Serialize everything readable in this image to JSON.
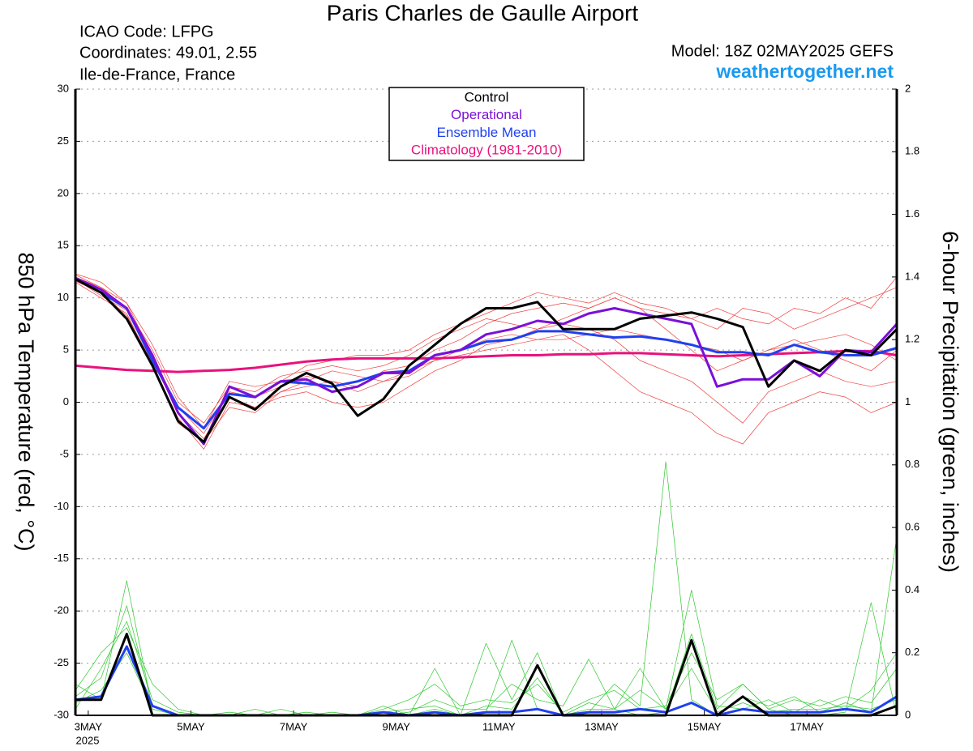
{
  "chart_data": {
    "type": "line",
    "title": "Paris Charles de Gaulle Airport",
    "header": {
      "icao": "ICAO Code: LFPG",
      "coordinates": "Coordinates: 49.01, 2.55",
      "region": "Ile-de-France, France",
      "model": "Model: 18Z 02MAY2025 GEFS",
      "site": "weathertogether.net"
    },
    "ylabel": "850 hPa Temperature (red, °C)",
    "y2label": "6-hour Precipitation (green, inches)",
    "x_sublabel": "2025",
    "grid": true,
    "xlim": [
      2.75,
      18.75
    ],
    "xticks": [
      {
        "value": 3,
        "label": "3MAY"
      },
      {
        "value": 5,
        "label": "5MAY"
      },
      {
        "value": 7,
        "label": "7MAY"
      },
      {
        "value": 9,
        "label": "9MAY"
      },
      {
        "value": 11,
        "label": "11MAY"
      },
      {
        "value": 13,
        "label": "13MAY"
      },
      {
        "value": 15,
        "label": "15MAY"
      },
      {
        "value": 17,
        "label": "17MAY"
      }
    ],
    "ylim": [
      -30,
      30
    ],
    "yticks": [
      -30,
      -25,
      -20,
      -15,
      -10,
      -5,
      0,
      5,
      10,
      15,
      20,
      25,
      30
    ],
    "y2lim": [
      0,
      2
    ],
    "y2ticks": [
      0,
      0.2,
      0.4,
      0.6,
      0.8,
      1,
      1.2,
      1.4,
      1.6,
      1.8,
      2
    ],
    "x": [
      2.75,
      3.25,
      3.75,
      4.25,
      4.75,
      5.25,
      5.75,
      6.25,
      6.75,
      7.25,
      7.75,
      8.25,
      8.75,
      9.25,
      9.75,
      10.25,
      10.75,
      11.25,
      11.75,
      12.25,
      12.75,
      13.25,
      13.75,
      14.25,
      14.75,
      15.25,
      15.75,
      16.25,
      16.75,
      17.25,
      17.75,
      18.25,
      18.75
    ],
    "series": [
      {
        "name": "Control",
        "color": "#000000",
        "values": [
          11.8,
          10.5,
          8,
          3.5,
          -1.8,
          -3.8,
          0.5,
          -0.7,
          1.5,
          2.8,
          1.8,
          -1.3,
          0.3,
          3.5,
          5.5,
          7.5,
          9,
          9,
          9.6,
          7,
          7,
          7,
          8,
          8.3,
          8.6,
          8,
          7.2,
          1.5,
          4,
          3,
          5,
          4.5,
          7
        ]
      },
      {
        "name": "Operational",
        "color": "#7a10d8",
        "values": [
          11.9,
          10.8,
          9,
          4.5,
          -1,
          -4,
          1.5,
          0.5,
          2,
          2.2,
          1,
          1.5,
          2.8,
          2.8,
          4.5,
          5,
          6.5,
          7,
          7.8,
          7.5,
          8.5,
          9,
          8.5,
          8,
          7.5,
          1.5,
          2.2,
          2.2,
          4,
          2.5,
          5,
          4.8,
          7.5
        ]
      },
      {
        "name": "Ensemble Mean",
        "color": "#2040f0",
        "values": [
          11.8,
          10.5,
          9,
          4,
          -0.5,
          -2.5,
          0.8,
          0.5,
          2,
          1.8,
          1.5,
          2,
          2.8,
          3,
          4.5,
          5,
          5.8,
          6,
          6.8,
          6.8,
          6.5,
          6.2,
          6.3,
          6,
          5.5,
          4.8,
          4.8,
          4.5,
          5.5,
          4.8,
          4.5,
          4.5,
          5.2
        ]
      },
      {
        "name": "Climatology (1981-2010)",
        "color": "#e8127c",
        "values": [
          3.5,
          3.3,
          3.1,
          3,
          2.9,
          3,
          3.1,
          3.3,
          3.6,
          3.9,
          4.1,
          4.2,
          4.2,
          4.2,
          4.2,
          4.3,
          4.4,
          4.5,
          4.5,
          4.6,
          4.6,
          4.7,
          4.7,
          4.6,
          4.5,
          4.4,
          4.5,
          4.6,
          4.7,
          4.8,
          4.9,
          4.9,
          4.5
        ]
      },
      {
        "color": "#f04040",
        "values": [
          12.2,
          11,
          9.5,
          4.5,
          -0.5,
          -3,
          1,
          0.5,
          1.5,
          2.5,
          2,
          1.5,
          3,
          3.5,
          5,
          6,
          7.5,
          8.5,
          9,
          9.5,
          9,
          10,
          9,
          8.5,
          8,
          7,
          9,
          8.5,
          7,
          8,
          9,
          10,
          11
        ]
      },
      {
        "color": "#f04040",
        "values": [
          11.5,
          10,
          8.5,
          3.5,
          -1.5,
          -4.5,
          0,
          -0.5,
          1,
          2,
          3,
          2.5,
          2,
          2.5,
          4,
          4.5,
          5,
          5.5,
          6,
          6.5,
          5,
          3,
          1,
          0,
          -1,
          -3,
          -4,
          -1,
          0,
          1,
          0.5,
          -1,
          0
        ]
      },
      {
        "color": "#f04040",
        "values": [
          12,
          11,
          9,
          5,
          0,
          -2,
          1.5,
          1,
          2.5,
          3,
          3.5,
          3,
          3.5,
          4.5,
          6,
          7,
          8,
          7.5,
          7,
          8,
          9,
          10,
          9,
          7,
          5,
          3,
          4,
          5,
          6,
          5,
          4,
          3,
          5
        ]
      },
      {
        "color": "#f04040",
        "values": [
          11.8,
          10.2,
          8.8,
          4,
          -1,
          -3.5,
          0.5,
          -0.5,
          0.5,
          1,
          0,
          -0.5,
          0,
          1.5,
          3,
          4,
          5.5,
          6,
          7,
          7.5,
          7,
          6,
          4,
          3,
          2,
          0,
          -2,
          1,
          2,
          3,
          2,
          1.5,
          2
        ]
      },
      {
        "color": "#f04040",
        "values": [
          12.3,
          11.5,
          9.5,
          5.5,
          0.5,
          -2.5,
          2,
          1.5,
          2,
          3.5,
          4,
          4.5,
          4.5,
          5,
          6.5,
          7.5,
          8.5,
          9.5,
          10.5,
          10,
          9.5,
          10.5,
          9.5,
          9,
          8,
          9,
          8,
          7.5,
          9,
          8.5,
          10,
          9,
          12
        ]
      },
      {
        "color": "#f04040",
        "values": [
          11.6,
          10.5,
          8.3,
          3.8,
          -2,
          -3.8,
          -0.5,
          -1,
          1,
          1.5,
          2,
          1,
          2,
          3,
          4,
          5,
          6,
          6.5,
          6,
          6,
          6.5,
          7,
          6.5,
          6,
          5.5,
          5,
          4,
          5,
          5.5,
          6,
          6.5,
          5.5,
          4
        ]
      },
      {
        "color": "#30c830",
        "axis": "y2",
        "values": [
          0.1,
          0.05,
          0.43,
          0.02,
          0,
          0,
          0,
          0,
          0,
          0,
          0,
          0,
          0,
          0,
          0.02,
          0,
          0.01,
          0.24,
          0.02,
          0,
          0.04,
          0.02,
          0,
          0.01,
          0.26,
          0.02,
          0.1,
          0.02,
          0,
          0,
          0.01,
          0.36,
          0
        ]
      },
      {
        "color": "#30c830",
        "axis": "y2",
        "values": [
          0.02,
          0.15,
          0.3,
          0.05,
          0.01,
          0,
          0,
          0,
          0,
          0.01,
          0,
          0,
          0.03,
          0,
          0.15,
          0,
          0.23,
          0.05,
          0.2,
          0,
          0.01,
          0.1,
          0.03,
          0.81,
          0.05,
          0,
          0.06,
          0.03,
          0.06,
          0.01,
          0.04,
          0.01,
          0.57
        ]
      },
      {
        "color": "#30c830",
        "axis": "y2",
        "values": [
          0.06,
          0.12,
          0.35,
          0.03,
          0,
          0,
          0,
          0.02,
          0,
          0,
          0,
          0,
          0,
          0.01,
          0.05,
          0.02,
          0.02,
          0.1,
          0.05,
          0.03,
          0.18,
          0.02,
          0.15,
          0.02,
          0.4,
          0.03,
          0.02,
          0.05,
          0.01,
          0.05,
          0.02,
          0.08,
          0.2
        ]
      },
      {
        "color": "#30c830",
        "axis": "y2",
        "values": [
          0.08,
          0.2,
          0.28,
          0.1,
          0.02,
          0,
          0.01,
          0,
          0.02,
          0,
          0.01,
          0,
          0.02,
          0.05,
          0.1,
          0.03,
          0.05,
          0.04,
          0.1,
          0.01,
          0.05,
          0.08,
          0.02,
          0.03,
          0.2,
          0.05,
          0.1,
          0.02,
          0.05,
          0.03,
          0.06,
          0.04,
          0.15
        ]
      },
      {
        "color": "#30c830",
        "axis": "y2",
        "values": [
          0.04,
          0.08,
          0.2,
          0.02,
          0,
          0,
          0,
          0,
          0,
          0,
          0,
          0,
          0.01,
          0.02,
          0.03,
          0,
          0.03,
          0.02,
          0.12,
          0,
          0.02,
          0.02,
          0.08,
          0.02,
          0.15,
          0.01,
          0.04,
          0.01,
          0.02,
          0.02,
          0.03,
          0.02,
          0.05
        ]
      },
      {
        "color": "#2040f0",
        "axis": "y2",
        "values": [
          0.05,
          0.06,
          0.22,
          0.03,
          0,
          0,
          0,
          0,
          0,
          0,
          0,
          0,
          0.01,
          0,
          0.01,
          0,
          0.01,
          0.01,
          0.02,
          0,
          0.01,
          0.01,
          0.02,
          0.01,
          0.04,
          0,
          0.02,
          0.01,
          0.01,
          0.01,
          0.02,
          0.01,
          0.06
        ]
      },
      {
        "color": "#000000",
        "axis": "y2",
        "values": [
          0.05,
          0.05,
          0.26,
          0,
          0,
          0,
          0,
          0,
          0,
          0,
          0,
          0,
          0,
          0,
          0,
          0,
          0,
          0,
          0.16,
          0,
          0,
          0,
          0,
          0,
          0.24,
          0,
          0.06,
          0,
          0,
          0,
          0,
          0,
          0.03
        ]
      }
    ]
  }
}
